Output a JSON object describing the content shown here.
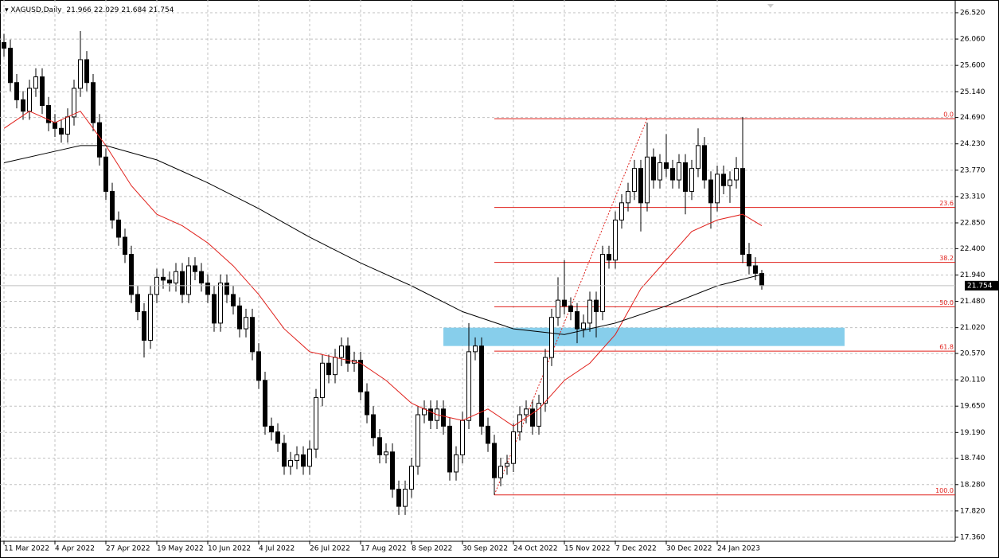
{
  "chart_data": {
    "type": "candlestick",
    "title": "XAGUSD,Daily",
    "categories": [
      "11 Mar 2022",
      null,
      null,
      null,
      null,
      null,
      null,
      null,
      "4 Apr 2022",
      null,
      null,
      null,
      null,
      null,
      null,
      null,
      "27 Apr 2022",
      null,
      null,
      null,
      null,
      null,
      null,
      null,
      "19 May 2022",
      null,
      null,
      null,
      null,
      null,
      null,
      null,
      "10 Jun 2022",
      null,
      null,
      null,
      null,
      null,
      null,
      null,
      "4 Jul 2022",
      null,
      null,
      null,
      null,
      null,
      null,
      null,
      "26 Jul 2022",
      null,
      null,
      null,
      null,
      null,
      null,
      null,
      "17 Aug 2022",
      null,
      null,
      null,
      null,
      null,
      null,
      null,
      "8 Sep 2022",
      null,
      null,
      null,
      null,
      null,
      null,
      null,
      "30 Sep 2022",
      null,
      null,
      null,
      null,
      null,
      null,
      null,
      "24 Oct 2022",
      null,
      null,
      null,
      null,
      null,
      null,
      null,
      "15 Nov 2022",
      null,
      null,
      null,
      null,
      null,
      null,
      null,
      "7 Dec 2022",
      null,
      null,
      null,
      null,
      null,
      null,
      null,
      "30 Dec 2022",
      null,
      null,
      null,
      null,
      null,
      null,
      null,
      "24 Jan 2023",
      null,
      null,
      null,
      null,
      null,
      null,
      null
    ],
    "open": [
      26.0,
      25.9,
      25.3,
      25.0,
      24.8,
      25.2,
      25.4,
      24.9,
      24.6,
      24.5,
      24.4,
      24.7,
      25.2,
      25.7,
      25.3,
      24.6,
      24.0,
      23.4,
      22.9,
      22.6,
      22.3,
      21.6,
      21.3,
      20.8,
      21.6,
      21.9,
      21.85,
      21.8,
      22.0,
      21.6,
      22.1,
      22.0,
      21.8,
      21.6,
      21.1,
      21.8,
      21.6,
      21.4,
      21.0,
      21.2,
      20.6,
      20.1,
      19.3,
      19.2,
      19.0,
      18.6,
      18.7,
      18.8,
      18.6,
      18.9,
      19.8,
      20.4,
      20.2,
      20.5,
      20.7,
      20.4,
      20.45,
      19.9,
      19.5,
      19.1,
      18.8,
      18.85,
      18.2,
      17.9,
      18.2,
      18.6,
      19.5,
      19.6,
      19.4,
      19.6,
      19.3,
      18.5,
      18.8,
      19.4,
      20.6,
      20.7,
      19.3,
      19.0,
      18.4,
      18.6,
      18.65,
      19.2,
      19.5,
      19.6,
      19.3,
      19.7,
      20.5,
      21.2,
      21.5,
      21.4,
      21.3,
      21.0,
      21.1,
      21.5,
      21.3,
      22.3,
      22.2,
      22.9,
      23.2,
      23.4,
      23.8,
      23.2,
      24.0,
      23.6,
      23.9,
      23.8,
      23.6,
      23.9,
      23.4,
      23.8,
      24.2,
      23.6,
      23.2,
      23.7,
      23.5,
      23.6,
      23.8,
      22.3,
      22.1,
      21.966
    ],
    "high": [
      26.15,
      26.05,
      25.45,
      25.15,
      25.35,
      25.55,
      25.55,
      25.05,
      24.75,
      24.65,
      24.85,
      25.35,
      26.2,
      25.85,
      25.45,
      24.75,
      24.15,
      23.55,
      23.05,
      22.75,
      22.45,
      21.75,
      21.45,
      21.75,
      22.05,
      22.05,
      22.0,
      22.15,
      22.15,
      22.25,
      22.25,
      22.15,
      21.95,
      21.75,
      21.95,
      21.95,
      21.75,
      21.55,
      21.35,
      21.35,
      20.75,
      20.25,
      19.45,
      19.35,
      19.15,
      18.85,
      18.95,
      18.95,
      19.05,
      19.95,
      20.55,
      20.55,
      20.65,
      20.85,
      20.85,
      20.6,
      20.6,
      20.05,
      19.65,
      19.25,
      19.0,
      19.0,
      18.35,
      18.35,
      18.75,
      19.65,
      19.75,
      19.75,
      19.75,
      19.75,
      19.45,
      18.95,
      19.55,
      21.1,
      20.85,
      20.85,
      19.45,
      19.15,
      18.75,
      18.8,
      19.35,
      19.65,
      19.75,
      19.75,
      19.85,
      20.65,
      21.35,
      21.9,
      22.2,
      21.55,
      21.45,
      21.25,
      21.65,
      21.65,
      22.45,
      22.45,
      23.05,
      23.35,
      23.55,
      23.95,
      23.95,
      24.6,
      24.15,
      24.05,
      24.4,
      23.95,
      24.05,
      24.05,
      23.95,
      24.5,
      24.35,
      23.75,
      23.85,
      23.85,
      23.75,
      24.0,
      24.7,
      22.5,
      22.25,
      22.029
    ],
    "low": [
      25.75,
      25.15,
      24.85,
      24.65,
      24.65,
      25.05,
      24.75,
      24.45,
      24.35,
      24.25,
      24.25,
      24.55,
      25.05,
      25.15,
      24.45,
      23.85,
      23.25,
      22.75,
      22.45,
      22.15,
      21.45,
      21.15,
      20.5,
      20.65,
      21.45,
      21.7,
      21.65,
      21.65,
      21.45,
      21.45,
      21.85,
      21.65,
      21.45,
      20.95,
      20.95,
      21.45,
      21.25,
      20.85,
      20.85,
      20.45,
      19.95,
      19.15,
      19.05,
      18.85,
      18.45,
      18.45,
      18.55,
      18.45,
      18.45,
      18.75,
      19.65,
      20.05,
      20.05,
      20.35,
      20.25,
      20.25,
      19.75,
      19.35,
      18.95,
      18.65,
      18.65,
      18.05,
      17.75,
      17.75,
      18.05,
      18.45,
      19.35,
      19.25,
      19.25,
      19.15,
      18.35,
      18.35,
      18.65,
      19.25,
      20.45,
      19.15,
      18.85,
      18.1,
      18.25,
      18.45,
      18.5,
      19.05,
      19.35,
      19.15,
      19.15,
      19.55,
      20.35,
      21.05,
      21.25,
      21.15,
      20.75,
      20.85,
      20.95,
      20.85,
      21.15,
      22.05,
      22.05,
      22.75,
      23.05,
      23.25,
      22.7,
      23.05,
      23.45,
      23.45,
      23.65,
      23.45,
      23.45,
      23.0,
      23.25,
      23.65,
      23.45,
      22.75,
      23.05,
      23.35,
      23.2,
      23.45,
      22.15,
      21.95,
      21.85,
      21.684
    ],
    "close": [
      25.9,
      25.3,
      25.0,
      24.8,
      25.2,
      25.4,
      24.9,
      24.6,
      24.5,
      24.4,
      24.7,
      25.2,
      25.7,
      25.3,
      24.6,
      24.0,
      23.4,
      22.9,
      22.6,
      22.3,
      21.6,
      21.3,
      20.8,
      21.6,
      21.9,
      21.85,
      21.8,
      22.0,
      21.6,
      22.1,
      22.0,
      21.8,
      21.6,
      21.1,
      21.8,
      21.6,
      21.4,
      21.0,
      21.2,
      20.6,
      20.1,
      19.3,
      19.2,
      19.0,
      18.6,
      18.7,
      18.8,
      18.6,
      18.9,
      19.8,
      20.4,
      20.2,
      20.5,
      20.7,
      20.4,
      20.45,
      19.9,
      19.5,
      19.1,
      18.8,
      18.85,
      18.2,
      17.9,
      18.2,
      18.6,
      19.5,
      19.6,
      19.4,
      19.6,
      19.3,
      18.5,
      18.8,
      19.4,
      20.6,
      20.7,
      19.3,
      19.0,
      18.4,
      18.6,
      18.65,
      19.2,
      19.5,
      19.6,
      19.3,
      19.7,
      20.5,
      21.2,
      21.5,
      21.4,
      21.3,
      21.0,
      21.1,
      21.5,
      21.3,
      22.3,
      22.2,
      22.9,
      23.2,
      23.4,
      23.8,
      23.2,
      24.0,
      23.6,
      23.9,
      23.8,
      23.6,
      23.9,
      23.4,
      23.8,
      24.2,
      23.6,
      23.2,
      23.7,
      23.5,
      23.6,
      23.8,
      22.3,
      22.1,
      21.97,
      21.754
    ],
    "series": [
      {
        "color": "#e0201b",
        "x": [
          0,
          4,
          8,
          12,
          16,
          20,
          24,
          28,
          32,
          36,
          40,
          44,
          48,
          52,
          56,
          60,
          64,
          68,
          72,
          76,
          80,
          84,
          88,
          92,
          96,
          100,
          104,
          108,
          112,
          116,
          119
        ],
        "values": [
          24.5,
          24.8,
          24.6,
          24.8,
          24.2,
          23.5,
          23.0,
          22.8,
          22.5,
          22.1,
          21.6,
          21.0,
          20.6,
          20.5,
          20.4,
          20.1,
          19.7,
          19.5,
          19.4,
          19.6,
          19.3,
          19.6,
          20.1,
          20.4,
          20.9,
          21.7,
          22.2,
          22.7,
          22.9,
          23.0,
          22.8
        ]
      },
      {
        "color": "#000000",
        "x": [
          0,
          8,
          12,
          16,
          24,
          32,
          40,
          48,
          56,
          64,
          72,
          80,
          88,
          96,
          104,
          112,
          119
        ],
        "values": [
          23.9,
          24.1,
          24.2,
          24.2,
          23.95,
          23.55,
          23.1,
          22.6,
          22.15,
          21.75,
          21.3,
          21.0,
          20.9,
          21.1,
          21.4,
          21.75,
          21.95
        ]
      }
    ],
    "fibo": {
      "color": "#e0201b",
      "from": 77,
      "to": 101,
      "high": 24.67,
      "low": 18.1,
      "levels": [
        {
          "value": 0,
          "label": "0.0"
        },
        23.6,
        38.2,
        {
          "value": 50,
          "label": "50.0"
        },
        61.8,
        {
          "value": 100,
          "label": "100.0"
        }
      ]
    },
    "zone": {
      "from": 69,
      "to": 132,
      "low": 20.7,
      "high": 21.02,
      "color": "#87ceeb"
    },
    "ylim": [
      17.29,
      26.742
    ],
    "yticks": [
      {
        "value": 26.52,
        "label": "26.520"
      },
      {
        "value": 26.06,
        "label": "26.060"
      },
      {
        "value": 25.6,
        "label": "25.600"
      },
      {
        "value": 25.14,
        "label": "25.140"
      },
      {
        "value": 24.69,
        "label": "24.690"
      },
      {
        "value": 24.23,
        "label": "24.230"
      },
      {
        "value": 23.77,
        "label": "23.770"
      },
      {
        "value": 23.31,
        "label": "23.310"
      },
      {
        "value": 22.85,
        "label": "22.850"
      },
      {
        "value": 22.4,
        "label": "22.400"
      },
      {
        "value": 21.94,
        "label": "21.940"
      },
      {
        "value": 21.48,
        "label": "21.480"
      },
      {
        "value": 21.02,
        "label": "21.020"
      },
      {
        "value": 20.57,
        "label": "20.570"
      },
      {
        "value": 20.11,
        "label": "20.110"
      },
      {
        "value": 19.65,
        "label": "19.650"
      },
      {
        "value": 19.19,
        "label": "19.190"
      },
      {
        "value": 18.74,
        "label": "18.740"
      },
      {
        "value": 18.28,
        "label": "18.280"
      },
      {
        "value": 17.82,
        "label": "17.820"
      },
      {
        "value": 17.36,
        "label": "17.360"
      }
    ],
    "grid": true
  }
}
